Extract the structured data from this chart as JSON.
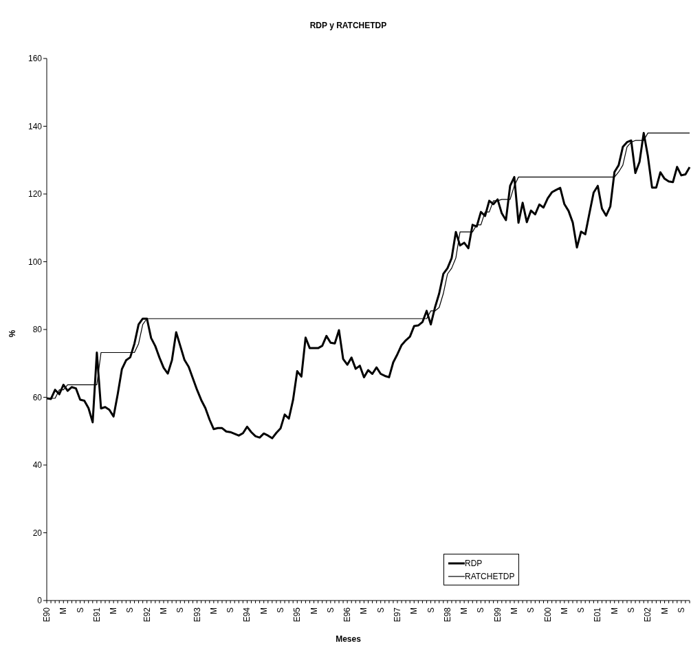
{
  "chart_data": {
    "type": "line",
    "title": "RDP y RATCHETDP",
    "xlabel": "Meses",
    "ylabel": "%",
    "categories": [
      "E90",
      null,
      null,
      null,
      "M",
      null,
      null,
      null,
      "S",
      null,
      null,
      null,
      "E91",
      null,
      null,
      null,
      "M",
      null,
      null,
      null,
      "S",
      null,
      null,
      null,
      "E92",
      null,
      null,
      null,
      "M",
      null,
      null,
      null,
      "S",
      null,
      null,
      null,
      "E93",
      null,
      null,
      null,
      "M",
      null,
      null,
      null,
      "S",
      null,
      null,
      null,
      "E94",
      null,
      null,
      null,
      "M",
      null,
      null,
      null,
      "S",
      null,
      null,
      null,
      "E95",
      null,
      null,
      null,
      "M",
      null,
      null,
      null,
      "S",
      null,
      null,
      null,
      "E96",
      null,
      null,
      null,
      "M",
      null,
      null,
      null,
      "S",
      null,
      null,
      null,
      "E97",
      null,
      null,
      null,
      "M",
      null,
      null,
      null,
      "S",
      null,
      null,
      null,
      "E98",
      null,
      null,
      null,
      "M",
      null,
      null,
      null,
      "S",
      null,
      null,
      null,
      "E99",
      null,
      null,
      null,
      "M",
      null,
      null,
      null,
      "S",
      null,
      null,
      null,
      "E00",
      null,
      null,
      null,
      "M",
      null,
      null,
      null,
      "S",
      null,
      null,
      null,
      "E01",
      null,
      null,
      null,
      "M",
      null,
      null,
      null,
      "S",
      null,
      null,
      null,
      "E02",
      null,
      null,
      null,
      "M",
      null,
      null,
      null,
      "S",
      null,
      null
    ],
    "series": [
      {
        "name": "RDP",
        "color": "#000000",
        "values": [
          59.7,
          59.5,
          62.2,
          60.9,
          63.7,
          61.9,
          63,
          62.6,
          59.3,
          59,
          56.8,
          52.6,
          73.2,
          56.7,
          57.1,
          56.3,
          54.3,
          60.9,
          68.3,
          70.9,
          71.8,
          75.8,
          81.5,
          83.2,
          83.2,
          77.5,
          75.1,
          71.7,
          68.7,
          67,
          71,
          79.2,
          75.1,
          71,
          69,
          65.6,
          62.2,
          59.2,
          56.8,
          53.4,
          50.6,
          50.9,
          50.9,
          49.9,
          49.7,
          49.2,
          48.7,
          49.4,
          51.3,
          49.7,
          48.5,
          48.1,
          49.3,
          48.7,
          47.9,
          49.5,
          50.8,
          54.9,
          53.7,
          59.2,
          67.7,
          66.1,
          77.6,
          74.5,
          74.5,
          74.5,
          75.2,
          78.1,
          76.1,
          75.9,
          79.8,
          71.3,
          69.6,
          71.7,
          68.4,
          69.3,
          65.9,
          68,
          66.9,
          68.8,
          66.9,
          66.3,
          65.9,
          70.3,
          72.7,
          75.4,
          76.8,
          77.9,
          81,
          81.2,
          82.2,
          85.5,
          81.5,
          86.5,
          90.6,
          96.4,
          98.1,
          101.1,
          108.8,
          104.8,
          105.6,
          104,
          110.9,
          110.4,
          114.7,
          113.5,
          118,
          117,
          118.4,
          114.3,
          112.3,
          122.4,
          125,
          111.5,
          117.4,
          111.7,
          115.1,
          114,
          116.9,
          116,
          118.7,
          120.5,
          121.2,
          121.8,
          117,
          115,
          111.6,
          104.2,
          108.9,
          108.1,
          114.3,
          120.4,
          122.4,
          115.7,
          113.6,
          116.3,
          126.5,
          128.5,
          133.9,
          135.3,
          135.8,
          126.2,
          129.5,
          138,
          131.2,
          121.9,
          121.9,
          126.4,
          124.5,
          123.7,
          123.5,
          128,
          125.5,
          125.8,
          127.9
        ]
      },
      {
        "name": "RATCHETDP",
        "color": "#000000",
        "values": [
          59.7,
          59.7,
          59.7,
          62.2,
          62.2,
          63.7,
          63.7,
          63.7,
          63.7,
          63.7,
          63.7,
          63.7,
          63.7,
          73.2,
          73.2,
          73.2,
          73.2,
          73.2,
          73.2,
          73.2,
          73.2,
          73.2,
          75.8,
          81.5,
          83.2,
          83.2,
          83.2,
          83.2,
          83.2,
          83.2,
          83.2,
          83.2,
          83.2,
          83.2,
          83.2,
          83.2,
          83.2,
          83.2,
          83.2,
          83.2,
          83.2,
          83.2,
          83.2,
          83.2,
          83.2,
          83.2,
          83.2,
          83.2,
          83.2,
          83.2,
          83.2,
          83.2,
          83.2,
          83.2,
          83.2,
          83.2,
          83.2,
          83.2,
          83.2,
          83.2,
          83.2,
          83.2,
          83.2,
          83.2,
          83.2,
          83.2,
          83.2,
          83.2,
          83.2,
          83.2,
          83.2,
          83.2,
          83.2,
          83.2,
          83.2,
          83.2,
          83.2,
          83.2,
          83.2,
          83.2,
          83.2,
          83.2,
          83.2,
          83.2,
          83.2,
          83.2,
          83.2,
          83.2,
          83.2,
          83.2,
          83.2,
          83.2,
          85.5,
          85.5,
          86.5,
          90.6,
          96.4,
          98.1,
          101.1,
          108.8,
          108.8,
          108.8,
          108.8,
          110.9,
          110.9,
          114.7,
          114.7,
          118,
          118,
          118.4,
          118.4,
          118.4,
          122.4,
          125,
          125,
          125,
          125,
          125,
          125,
          125,
          125,
          125,
          125,
          125,
          125,
          125,
          125,
          125,
          125,
          125,
          125,
          125,
          125,
          125,
          125,
          125,
          125,
          126.5,
          128.5,
          133.9,
          135.3,
          135.8,
          135.8,
          135.8,
          138,
          138,
          138,
          138,
          138,
          138,
          138,
          138,
          138,
          138,
          138
        ]
      }
    ],
    "ylim": [
      0,
      160
    ],
    "yticks": [
      0,
      20,
      40,
      60,
      80,
      100,
      120,
      140,
      160
    ],
    "grid": false,
    "legend": "bottom",
    "marker": "none",
    "line_style": "solid"
  }
}
